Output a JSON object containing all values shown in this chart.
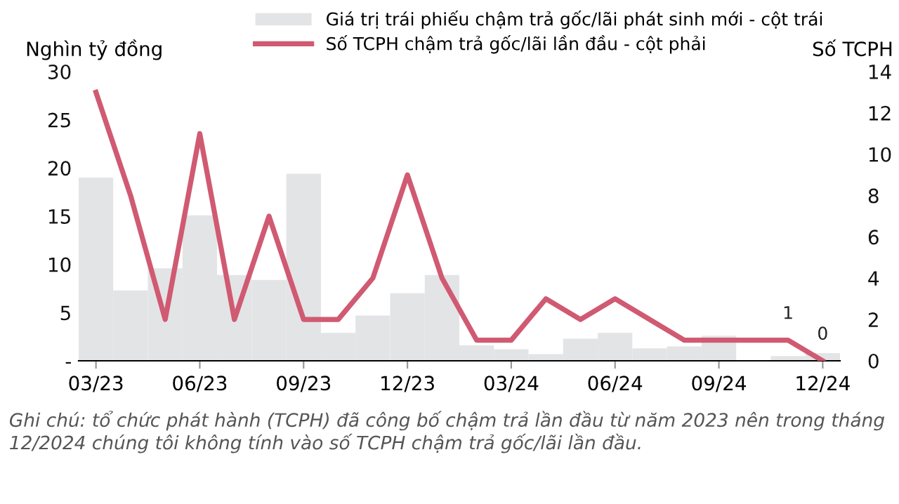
{
  "chart_data": {
    "type": "bar",
    "categories": [
      "03/23",
      null,
      null,
      "06/23",
      null,
      null,
      "09/23",
      null,
      null,
      "12/23",
      null,
      null,
      "03/24",
      null,
      null,
      "06/24",
      null,
      null,
      "09/24",
      null,
      null,
      "12/24"
    ],
    "series": [
      {
        "name": "Giá trị trái phiếu chậm trả gốc/lãi phát sinh mới - cột trái",
        "color": "#e3e4e6",
        "values": [
          19,
          7.3,
          9.6,
          15.1,
          8.9,
          8.4,
          19.4,
          2.9,
          4.7,
          7.0,
          8.9,
          1.6,
          1.2,
          0.7,
          2.3,
          2.9,
          1.3,
          1.5,
          2.6,
          null,
          0.5,
          0.8
        ]
      },
      {
        "name": "Số TCPH chậm trả gốc/lãi lần đầu - cột phải",
        "type": "line",
        "axis": "y2",
        "color": "#d05a72",
        "values": [
          13,
          8,
          2,
          11,
          2,
          7,
          2,
          2,
          4,
          9,
          4,
          1,
          1,
          3,
          2,
          3,
          2,
          1,
          1,
          1,
          1,
          0
        ],
        "value_labels": [
          null,
          null,
          null,
          null,
          null,
          null,
          null,
          null,
          null,
          null,
          null,
          null,
          null,
          null,
          null,
          null,
          null,
          null,
          null,
          null,
          "1",
          "0"
        ]
      }
    ],
    "ylabel": "Nghìn tỷ đồng",
    "y2label": "Số TCPH",
    "ylim": [
      0,
      30
    ],
    "yticks": [
      {
        "value": 0,
        "label": "-"
      },
      5,
      10,
      15,
      20,
      25,
      30
    ],
    "y2lim": [
      0,
      14
    ],
    "y2ticks": [
      0,
      2,
      4,
      6,
      8,
      10,
      12,
      14
    ],
    "legend": "top",
    "grid": false,
    "marker": "none",
    "line_style": "solid",
    "annotations": [
      "Ghi chú: tổ chức phát hành (TCPH) đã công bố chậm trả lần đầu từ năm 2023 nên trong tháng 12/2024 chúng tôi không tính vào số TCPH chậm trả gốc/lãi lần đầu."
    ]
  }
}
